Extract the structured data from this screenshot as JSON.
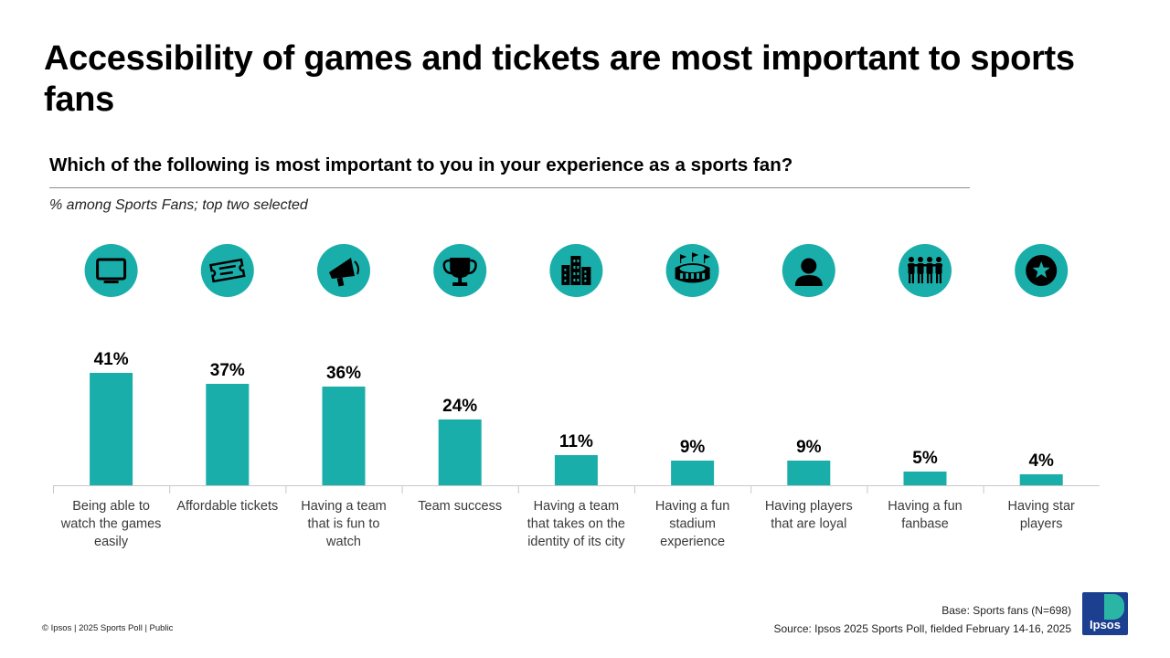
{
  "header": {
    "title": "Accessibility of games and tickets are most important to sports fans",
    "question": "Which of the following is most important to you in your experience as a sports fan?",
    "subtitle": "% among Sports Fans; top two selected"
  },
  "chart_data": {
    "type": "bar",
    "categories": [
      "Being able to watch the games easily",
      "Affordable tickets",
      "Having a team that is fun to watch",
      "Team success",
      "Having a team that takes on the identity of its city",
      "Having a fun stadium experience",
      "Having players that are loyal",
      "Having a fun fanbase",
      "Having star players"
    ],
    "category_lines": [
      [
        "Being able to",
        "watch the games",
        "easily"
      ],
      [
        "Affordable tickets"
      ],
      [
        "Having a team",
        "that is fun to",
        "watch"
      ],
      [
        "Team success"
      ],
      [
        "Having a team",
        "that takes on the",
        "identity of its city"
      ],
      [
        "Having a fun",
        "stadium",
        "experience"
      ],
      [
        "Having players",
        "that are loyal"
      ],
      [
        "Having a fun",
        "fanbase"
      ],
      [
        "Having star",
        "players"
      ]
    ],
    "values": [
      41,
      37,
      36,
      24,
      11,
      9,
      9,
      5,
      4
    ],
    "data_labels": [
      "41%",
      "37%",
      "36%",
      "24%",
      "11%",
      "9%",
      "9%",
      "5%",
      "4%"
    ],
    "ylim": [
      0,
      41
    ],
    "grid": false,
    "legend": "none",
    "bar_color": "#1aaeaa",
    "icon_color": "#1aaeaa",
    "icons": [
      "tv-icon",
      "ticket-icon",
      "megaphone-icon",
      "trophy-icon",
      "city-icon",
      "stadium-icon",
      "player-icon",
      "fans-icon",
      "star-icon"
    ]
  },
  "footer": {
    "copyright": "© Ipsos | 2025 Sports Poll | Public",
    "base": "Base: Sports fans (N=698)",
    "source": "Source:  Ipsos 2025 Sports Poll, fielded February 14-16, 2025",
    "logo_text": "Ipsos"
  }
}
